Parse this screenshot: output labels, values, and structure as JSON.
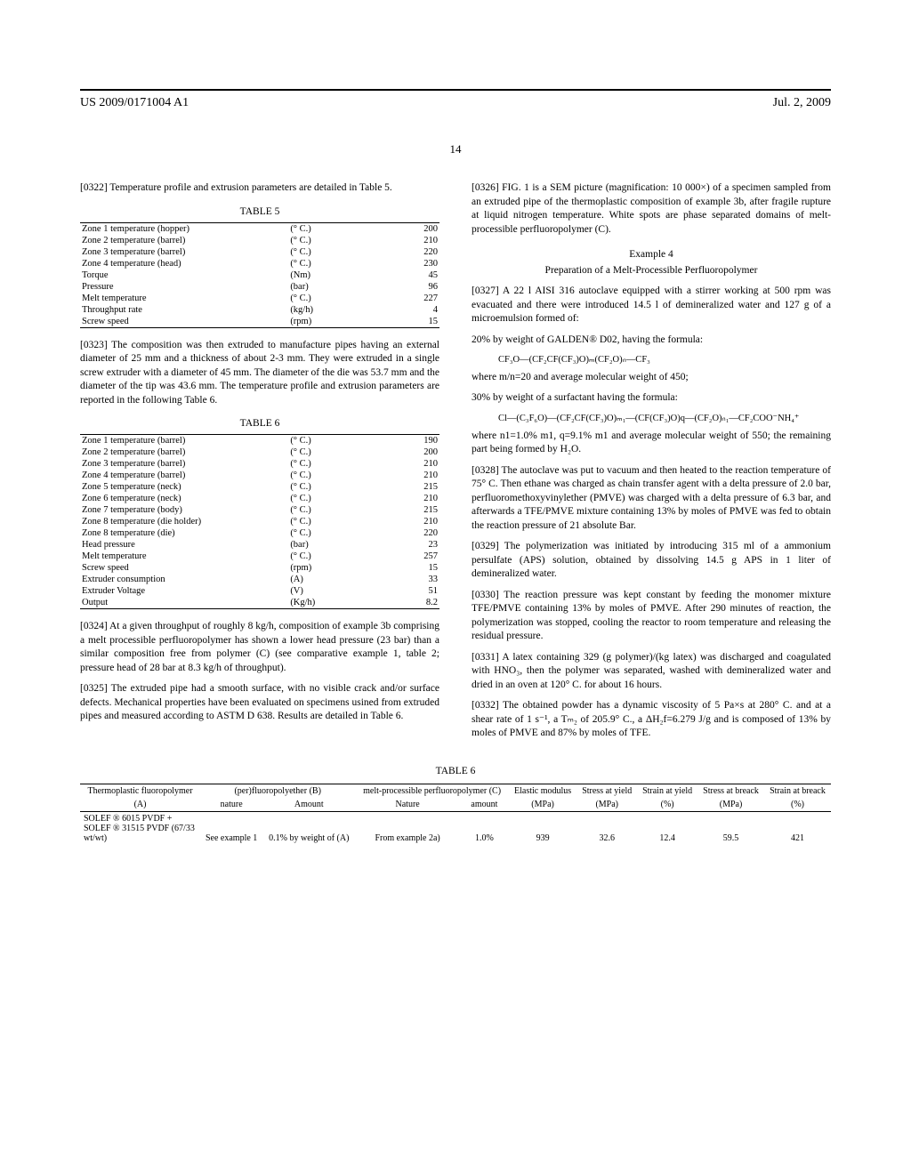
{
  "header": {
    "pub_number": "US 2009/0171004 A1",
    "pub_date": "Jul. 2, 2009",
    "page_number": "14"
  },
  "para_0322": "[0322]   Temperature profile and extrusion parameters are detailed in Table 5.",
  "table5": {
    "title": "TABLE 5",
    "rows": [
      [
        "Zone 1 temperature (hopper)",
        "(° C.)",
        "200"
      ],
      [
        "Zone 2 temperature (barrel)",
        "(° C.)",
        "210"
      ],
      [
        "Zone 3 temperature (barrel)",
        "(° C.)",
        "220"
      ],
      [
        "Zone 4 temperature (head)",
        "(° C.)",
        "230"
      ],
      [
        "Torque",
        "(Nm)",
        "45"
      ],
      [
        "Pressure",
        "(bar)",
        "96"
      ],
      [
        "Melt temperature",
        "(° C.)",
        "227"
      ],
      [
        "Throughput rate",
        "(kg/h)",
        "4"
      ],
      [
        "Screw speed",
        "(rpm)",
        "15"
      ]
    ]
  },
  "para_0323": "[0323]   The composition was then extruded to manufacture pipes having an external diameter of 25 mm and a thickness of about 2-3 mm. They were extruded in a single screw extruder with a diameter of 45 mm. The diameter of the die was 53.7 mm and the diameter of the tip was 43.6 mm. The temperature profile and extrusion parameters are reported in the following Table 6.",
  "table6a": {
    "title": "TABLE 6",
    "rows": [
      [
        "Zone 1 temperature (barrel)",
        "(° C.)",
        "190"
      ],
      [
        "Zone 2 temperature (barrel)",
        "(° C.)",
        "200"
      ],
      [
        "Zone 3 temperature (barrel)",
        "(° C.)",
        "210"
      ],
      [
        "Zone 4 temperature (barrel)",
        "(° C.)",
        "210"
      ],
      [
        "Zone 5 temperature (neck)",
        "(° C.)",
        "215"
      ],
      [
        "Zone 6 temperature (neck)",
        "(° C.)",
        "210"
      ],
      [
        "Zone 7 temperature (body)",
        "(° C.)",
        "215"
      ],
      [
        "Zone 8 temperature (die holder)",
        "(° C.)",
        "210"
      ],
      [
        "Zone 8 temperature (die)",
        "(° C.)",
        "220"
      ],
      [
        "Head pressure",
        "(bar)",
        "23"
      ],
      [
        "Melt temperature",
        "(° C.)",
        "257"
      ],
      [
        "Screw speed",
        "(rpm)",
        "15"
      ],
      [
        "Extruder consumption",
        "(A)",
        "33"
      ],
      [
        "Extruder Voltage",
        "(V)",
        "51"
      ],
      [
        "Output",
        "(Kg/h)",
        "8.2"
      ]
    ]
  },
  "para_0324": "[0324]   At a given throughput of roughly 8 kg/h, composition of example 3b comprising a melt processible perfluoropolymer has shown a lower head pressure (23 bar) than a similar composition free from polymer (C) (see comparative example 1, table 2; pressure head of 28 bar at 8.3 kg/h of throughput).",
  "para_0325": "[0325]   The extruded pipe had a smooth surface, with no visible crack and/or surface defects. Mechanical properties have been evaluated on specimens usined from extruded pipes and measured according to ASTM D 638. Results are detailed in Table 6.",
  "para_0326": "[0326]   FIG. 1 is a SEM picture (magnification: 10 000×) of a specimen sampled from an extruded pipe of the thermoplastic composition of example 3b, after fragile rupture at liquid nitrogen temperature. White spots are phase separated domains of melt-processible perfluoropolymer (C).",
  "example4": {
    "head": "Example 4",
    "sub": "Preparation of a Melt-Processible Perfluoropolymer"
  },
  "para_0327a": "[0327]   A 22 l AISI 316 autoclave equipped with a stirrer working at 500 rpm was evacuated and there were introduced 14.5 l of demineralized water and 127 g of a microemulsion formed of:",
  "para_0327b": "20% by weight of GALDEN® D02, having the formula:",
  "formula1": "CF₃O—(CF₂CF(CF₃)O)ₘ(CF₂O)ₙ—CF₃",
  "para_0327c": "where m/n=20 and average molecular weight of 450;",
  "para_0327d": "30% by weight of a surfactant having the formula:",
  "formula2": "Cl—(C₃F₆O)—(CF₂CF(CF₃)O)ₘ₁—(CF(CF₃)O)q—(CF₂O)ₙ₁—CF₂COO⁻NH₄⁺",
  "para_0327e": "where n1=1.0% m1, q=9.1% m1 and average molecular weight of 550; the remaining part being formed by H₂O.",
  "para_0328": "[0328]   The autoclave was put to vacuum and then heated to the reaction temperature of 75° C. Then ethane was charged as chain transfer agent with a delta pressure of 2.0 bar, perfluoromethoxyvinylether (PMVE) was charged with a delta pressure of 6.3 bar, and afterwards a TFE/PMVE mixture containing 13% by moles of PMVE was fed to obtain the reaction pressure of 21 absolute Bar.",
  "para_0329": "[0329]   The polymerization was initiated by introducing 315 ml of a ammonium persulfate (APS) solution, obtained by dissolving 14.5 g APS in 1 liter of demineralized water.",
  "para_0330": "[0330]   The reaction pressure was kept constant by feeding the monomer mixture TFE/PMVE containing 13% by moles of PMVE. After 290 minutes of reaction, the polymerization was stopped, cooling the reactor to room temperature and releasing the residual pressure.",
  "para_0331": "[0331]   A latex containing 329 (g polymer)/(kg latex) was discharged and coagulated with HNO₃, then the polymer was separated, washed with demineralized water and dried in an oven at 120° C. for about 16 hours.",
  "para_0332": "[0332]   The obtained powder has a dynamic viscosity of 5 Pa×s at 280° C. and at a shear rate of 1 s⁻¹, a Tₘ₂ of 205.9° C., a ΔH₂f=6.279 J/g and is composed of 13% by moles of PMVE and 87% by moles of TFE.",
  "table6b": {
    "title": "TABLE 6",
    "header1": [
      "Thermoplastic fluoropolymer",
      "(per)fluoropolyether (B)",
      "melt-processible perfluoropolymer (C)",
      "Elastic modulus",
      "Stress at yield",
      "Strain at yield",
      "Stress at breack",
      "Strain at breack"
    ],
    "header2": [
      "(A)",
      "nature",
      "Amount",
      "Nature",
      "amount",
      "(MPa)",
      "(MPa)",
      "(%)",
      "(MPa)",
      "(%)"
    ],
    "row": [
      "SOLEF ® 6015 PVDF + SOLEF ® 31515 PVDF (67/33 wt/wt)",
      "See example 1",
      "0.1% by weight of (A)",
      "From example 2a)",
      "1.0%",
      "939",
      "32.6",
      "12.4",
      "59.5",
      "421"
    ]
  }
}
